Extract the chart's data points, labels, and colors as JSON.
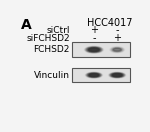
{
  "panel_label": "A",
  "cell_line": "HCC4017",
  "row_labels": [
    "siCtrl",
    "siFCHSD2"
  ],
  "col_signs": [
    [
      "+",
      "-"
    ],
    [
      "-",
      "+"
    ]
  ],
  "blot_labels": [
    "FCHSD2",
    "Vinculin"
  ],
  "bg_color": "#f4f4f4",
  "box_facecolor": "#e0e0e0",
  "box_edgecolor": "#555555",
  "band_color": "#333333",
  "blot1_lane1_intensity": 0.72,
  "blot1_lane2_intensity": 0.22,
  "blot2_lane1_intensity": 0.75,
  "blot2_lane2_intensity": 0.75,
  "panel_label_fontsize": 10,
  "cell_line_fontsize": 7,
  "row_label_fontsize": 6.5,
  "sign_fontsize": 7,
  "blot_label_fontsize": 6.5
}
